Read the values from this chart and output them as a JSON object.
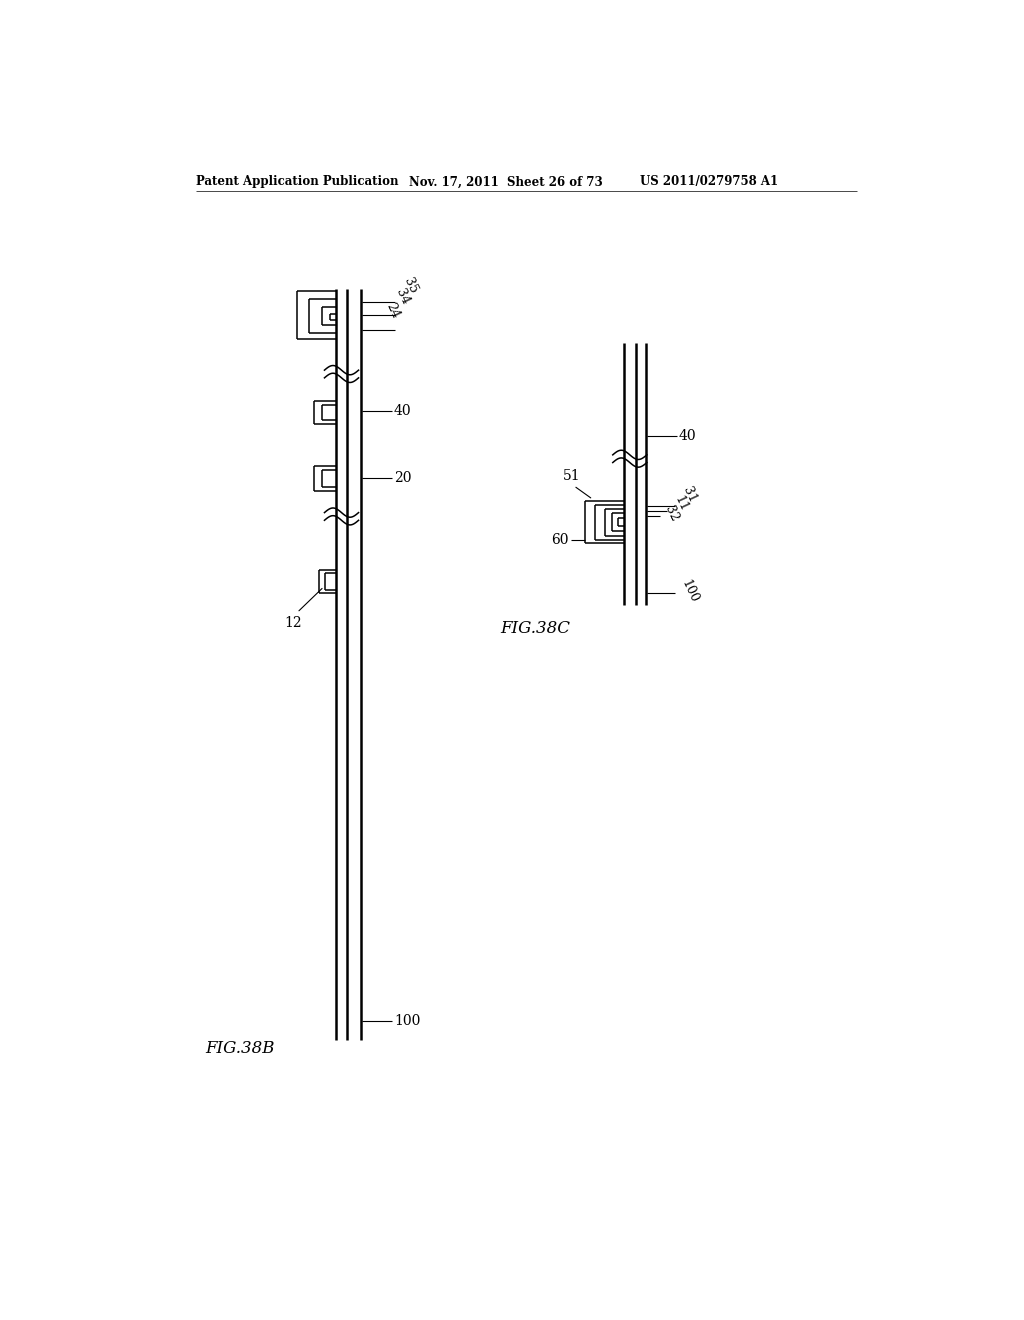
{
  "bg_color": "#ffffff",
  "header_left": "Patent Application Publication",
  "header_mid": "Nov. 17, 2011  Sheet 26 of 73",
  "header_right": "US 2011/0279758 A1",
  "fig38b_label": "FIG.38B",
  "fig38c_label": "FIG.38C",
  "line_color": "#000000",
  "lw_thick": 1.8,
  "lw_thin": 1.1,
  "lw_hairline": 0.8
}
